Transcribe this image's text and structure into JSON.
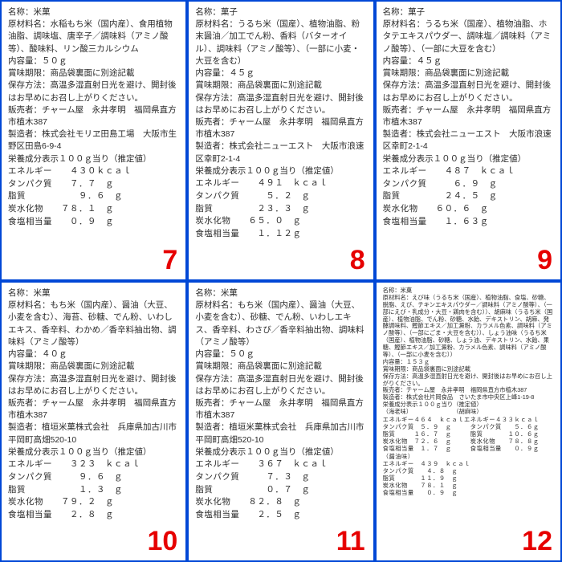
{
  "panels": [
    {
      "num": "7",
      "small": false,
      "lines": [
        "名称：米菓",
        "原材料名：水稲もち米（国内産）、食用植物油脂、調味塩、唐辛子／調味料（アミノ酸等）、酸味料、リン酸三カルシウム",
        "内容量：５０ｇ",
        "賞味期限：商品袋裏面に別途記載",
        "保存方法：高温多湿直射日光を避け、開封後はお早めにお召し上がりください。",
        "販売者：チャーム屋　永井孝明　福岡県直方市植木387",
        "製造者：株式会社モリヱ田島工場　大阪市生野区田島6-9-4",
        "栄養成分表示１００ｇ当り（推定値）"
      ],
      "nutr": [
        "エネルギー　　４３０ｋｃａｌ",
        "タンパク質　　７．７　ｇ",
        "脂質　　　　　　９．６　ｇ",
        "炭水化物　　７８．１　ｇ",
        "食塩相当量　　０．９　ｇ"
      ]
    },
    {
      "num": "8",
      "small": false,
      "lines": [
        "名称：菓子",
        "原材料名：うるち米（国産）、植物油脂、粉末醤油／加工でん粉、香料（バターオイル）、調味料（アミノ酸等）、（一部に小麦・大豆を含む）",
        "内容量：４５ｇ",
        "賞味期限：商品袋裏面に別途記載",
        "保存方法：高温多湿直射日光を避け、開封後はお早めにお召し上がりください。",
        "販売者：チャーム屋　永井孝明　福岡県直方市植木387",
        "製造者：株式会社ニューエスト　大阪市浪速区幸町2-1-4",
        "栄養成分表示１００ｇ当り（推定値）"
      ],
      "nutr": [
        "エネルギー　　４９１　ｋｃａｌ",
        "タンパク質　　　５．２　ｇ",
        "脂質　　　　　２３．３　ｇ",
        "炭水化物　　６５．０　ｇ",
        "食塩相当量　　１．１２ｇ"
      ]
    },
    {
      "num": "9",
      "small": false,
      "lines": [
        "名称：菓子",
        "原材料名：うるち米（国産）、植物油脂、ホタテエキスパウダー、調味塩／調味料（アミノ酸等）、（一部に大豆を含む）",
        "",
        "内容量：４５ｇ",
        "賞味期限：商品袋裏面に別途記載",
        "保存方法：高温多湿直射日光を避け、開封後はお早めにお召し上がりください。",
        "販売者：チャーム屋　永井孝明　福岡県直方市植木387",
        "製造者：株式会社ニューエスト　大阪市浪速区幸町2-1-4",
        "栄養成分表示１００ｇ当り（推定値）"
      ],
      "nutr": [
        "エネルギー　　４８７　ｋｃａｌ",
        "タンパク質　　　６．９　ｇ",
        "脂質　　　　　２４．５　ｇ",
        "炭水化物　　６０．６　ｇ",
        "食塩相当量　　１．６３ｇ"
      ]
    },
    {
      "num": "10",
      "small": false,
      "lines": [
        "名称：米菓",
        "原材料名：もち米（国内産）、醤油（大豆、小麦を含む）、海苔、砂糖、でん粉、いわしエキス、香辛料、わかめ／香辛料抽出物、調味料（アミノ酸等）",
        "内容量：４０ｇ",
        "賞味期限：商品袋裏面に別途記載",
        "保存方法：高温多湿直射日光を避け、開封後はお早めにお召し上がりください。",
        "販売者：チャーム屋　永井孝明　福岡県直方市植木387",
        "製造者：植垣米菓株式会社　兵庫県加古川市平岡町高畑520-10",
        "栄養成分表示１００ｇ当り（推定値）"
      ],
      "nutr": [
        "エネルギー　　３２３　ｋｃａｌ",
        "タンパク質　　　９．６　ｇ",
        "脂質　　　　　　１．３　ｇ",
        "炭水化物　　７９．２　ｇ",
        "食塩相当量　　２．８　ｇ"
      ]
    },
    {
      "num": "11",
      "small": false,
      "lines": [
        "名称：米菓",
        "原材料名：もち米（国内産）、醤油（大豆、小麦を含む）、砂糖、でん粉、いわしエキス、香辛料、わさび／香辛料抽出物、調味料（アミノ酸等）",
        "内容量：５０ｇ",
        "賞味期限：商品袋裏面に別途記載",
        "保存方法：高温多湿直射日光を避け、開封後はお早めにお召し上がりください。",
        "販売者：チャーム屋　永井孝明　福岡県直方市植木387",
        "製造者：植垣米菓株式会社　兵庫県加古川市平岡町高畑520-10",
        "栄養成分表示１００ｇ当り（推定値）"
      ],
      "nutr": [
        "エネルギー　　３６７　ｋｃａｌ",
        "タンパク質　　　７．３　ｇ",
        "脂質　　　　　　０．７　ｇ",
        "炭水化物　　８２．８　ｇ",
        "食塩相当量　　２．５　ｇ"
      ]
    },
    {
      "num": "12",
      "small": true,
      "lines": [
        "名称：米菓",
        "原材料名：えび味（うるち米（国産）、植物油脂、食塩、砂糖、脱脂、えび、チキンエキスパウダー／調味料（アミノ酸等）、（一部にえび・乳成分・大豆・鶏肉を含む））、胡麻味（うるち米（国産）、植物油脂、でん粉、砂糖、水飴、デキストリン、胡麻、発酵調味料、鰹節エキス／加工澱粉、カラメル色素、調味料（アミノ酸等）、（一部にごま・大豆を含む））、しょう油味（うるち米（国産）、植物油脂、砂糖、しょう油、デキストリン、水飴、果糖、鰹節エキス／加工澱粉、カラメル色素、調味料（アミノ酸等）、（一部に小麦を含む））",
        "内容量：１５３ｇ",
        "賞味期限：商品袋裏面に別途記載",
        "保存方法：高温多湿直射日光を避け、開封後はお早めにお召し上がりください。",
        "販売者：チャーム屋　永井孝明　福岡県直方市植木387",
        "",
        "製造者：株式会社片岡食品　さいたま市中央区上峰1-19-8",
        "栄養成分表示１００ｇ当り（推定値）",
        "（海老味）　　　　　　　　（胡麻味）"
      ],
      "nutr": [
        "エネルギー４６４　ｋｃａｌエネルギー４３３ｋｃａｌ",
        "タンパク質　５．９　ｇ　　　タンパク質　　５．６ｇ",
        "脂質　　　１６．７　ｇ　　　脂質　　　　１０．６ｇ",
        "炭水化物　７２．６　ｇ　　　炭水化物　　７８．８ｇ",
        "食塩相当量　１．７　ｇ　　　食塩相当量　　０．９ｇ",
        "（醤油味）",
        "エネルギー　４３９　ｋｃａｌ",
        "タンパク質　　４．８　ｇ",
        "脂質　　　　１１．９　ｇ",
        "炭水化物　　７８．１　ｇ",
        "食塩相当量　　０．９　ｇ"
      ]
    }
  ]
}
